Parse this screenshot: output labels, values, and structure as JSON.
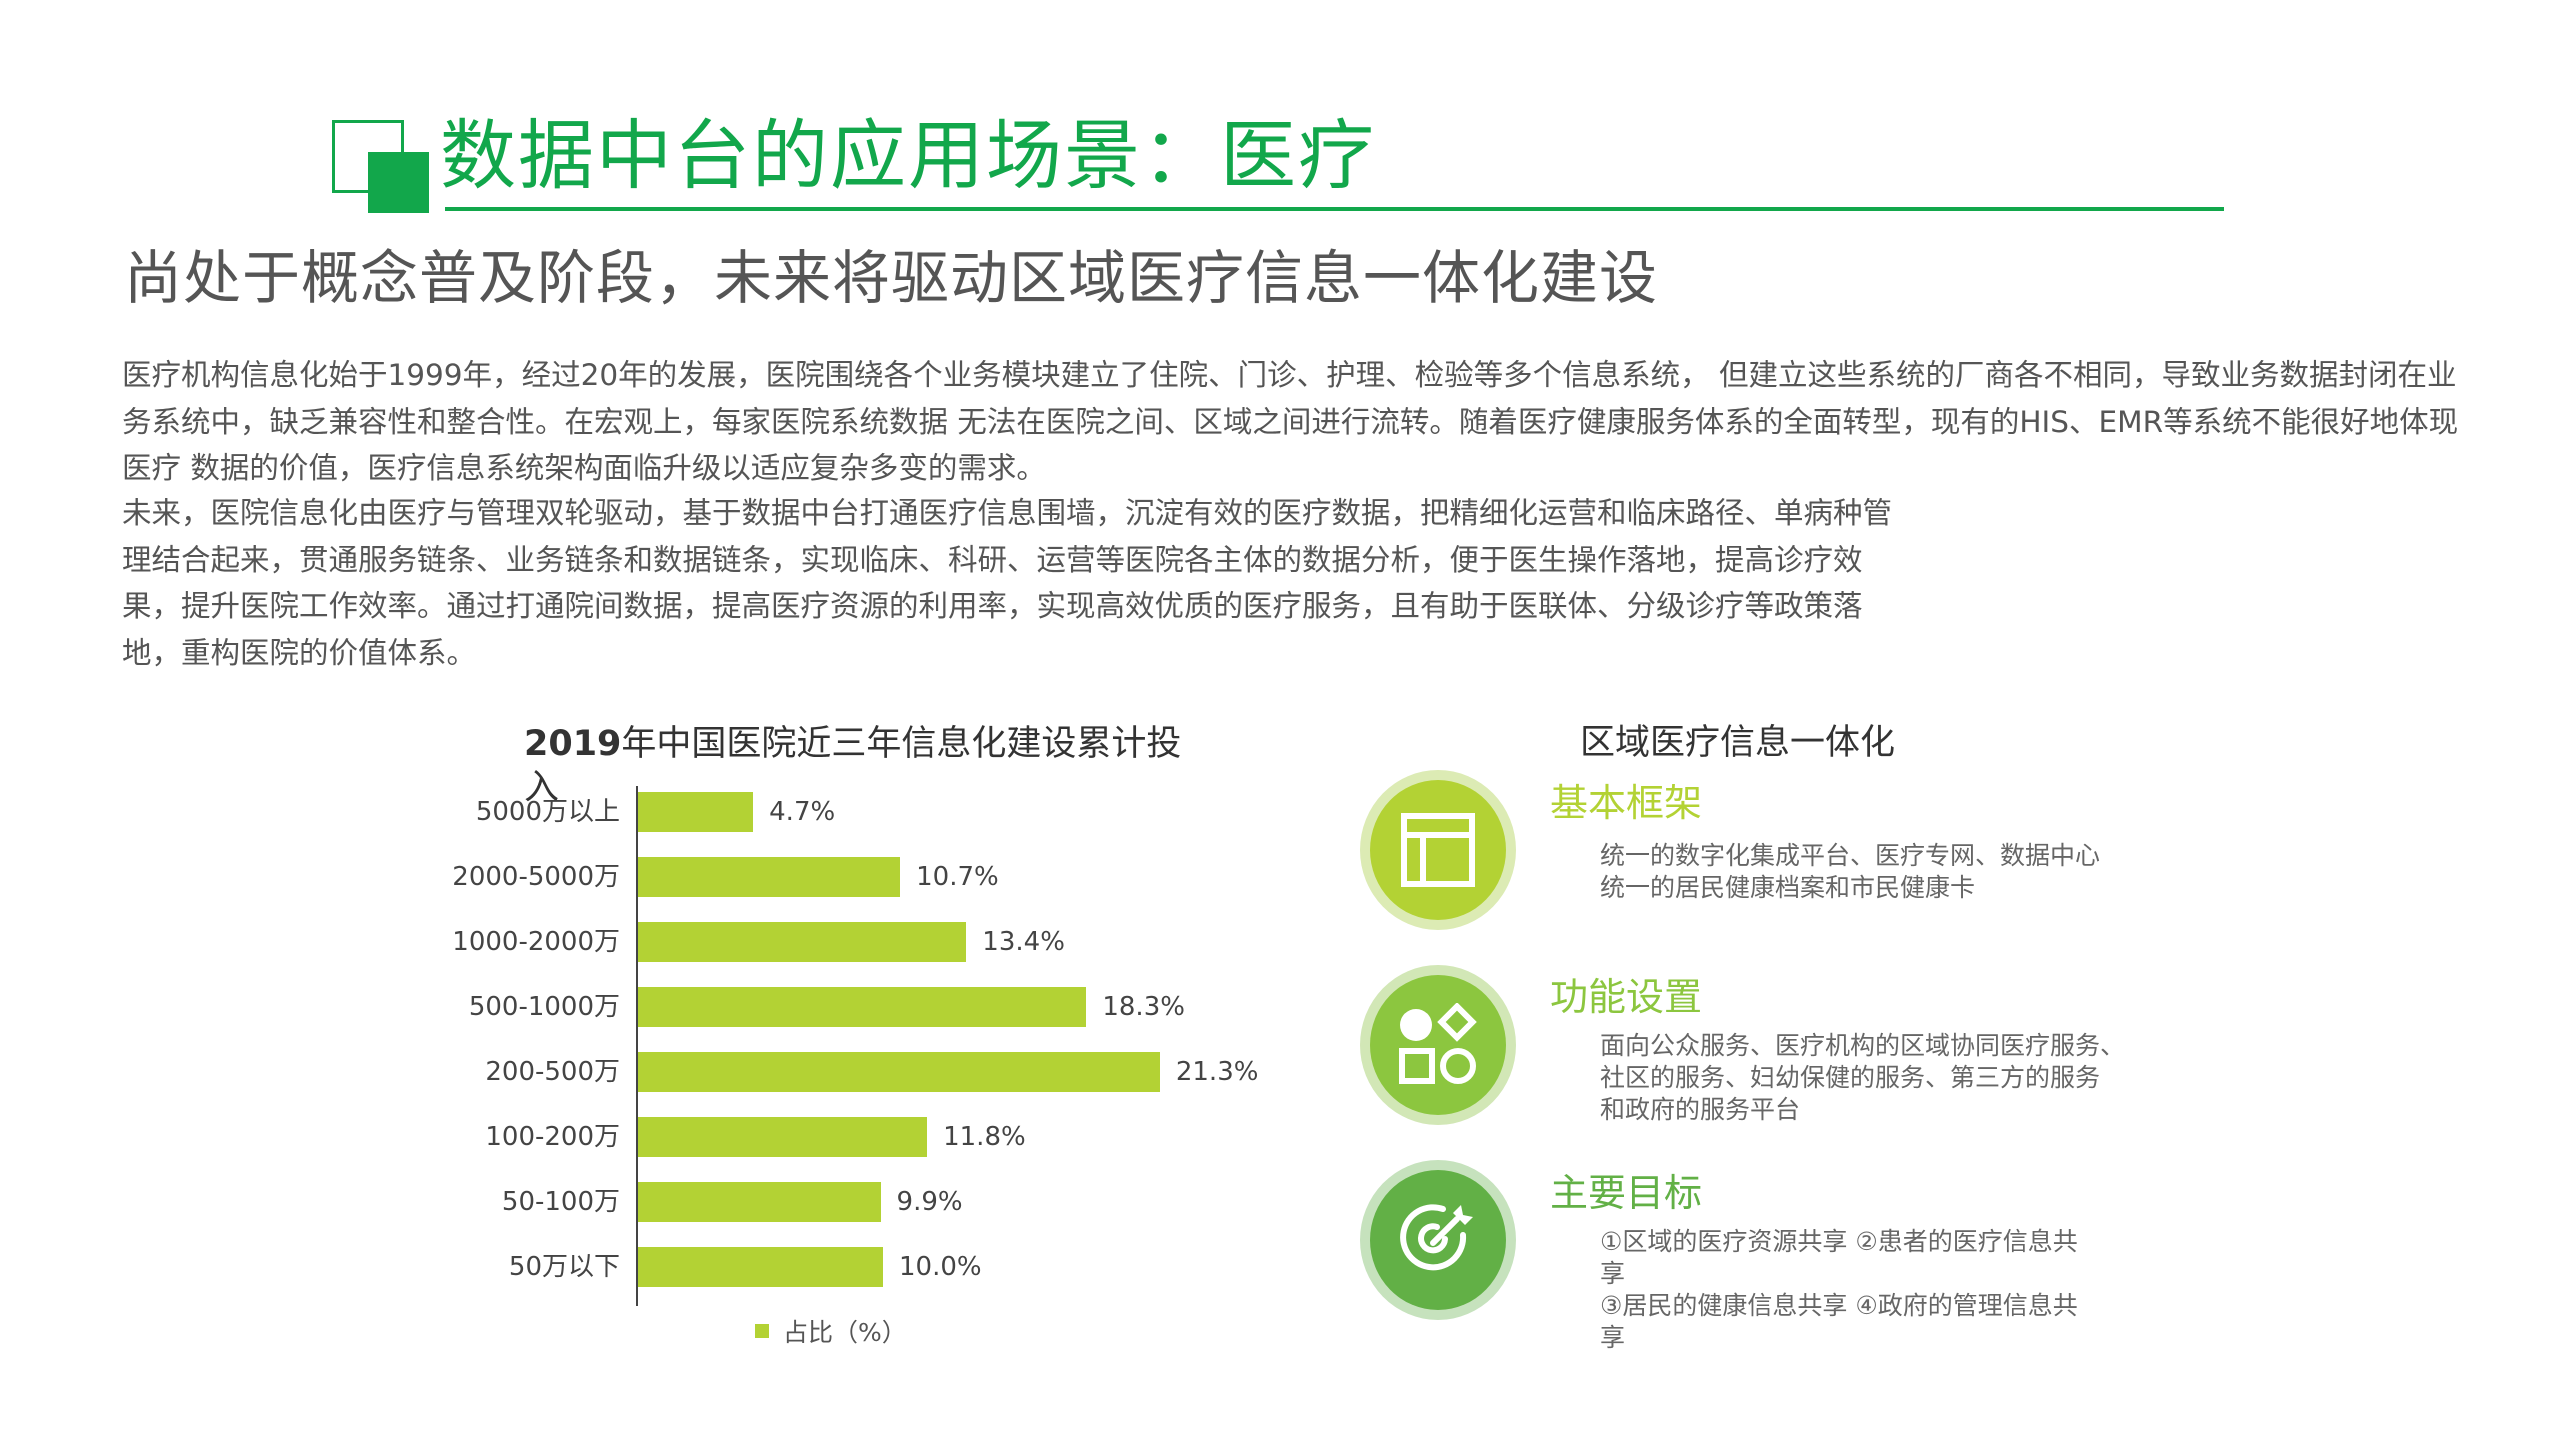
{
  "header": {
    "title": "数据中台的应用场景：医疗",
    "subtitle": "尚处于概念普及阶段，未来将驱动区域医疗信息一体化建设"
  },
  "body": {
    "paragraph1": "医疗机构信息化始于1999年，经过20年的发展，医院围绕各个业务模块建立了住院、门诊、护理、检验等多个信息系统， 但建立这些系统的厂商各不相同，导致业务数据封闭在业务系统中，缺乏兼容性和整合性。在宏观上，每家医院系统数据 无法在医院之间、区域之间进行流转。随着医疗健康服务体系的全面转型，现有的HIS、EMR等系统不能很好地体现医疗 数据的价值，医疗信息系统架构面临升级以适应复杂多变的需求。",
    "paragraph2": "未来，医院信息化由医疗与管理双轮驱动，基于数据中台打通医疗信息围墙，沉淀有效的医疗数据，把精细化运营和临床路径、单病种管理结合起来，贯通服务链条、业务链条和数据链条，实现临床、科研、运营等医院各主体的数据分析，便于医生操作落地，提高诊疗效果，提升医院工作效率。通过打通院间数据，提高医疗资源的利用率，实现高效优质的医疗服务，且有助于医联体、分级诊疗等政策落地，重构医院的价值体系。"
  },
  "chart": {
    "title_bold": "2019",
    "title_rest": "年中国医院近三年信息化建设累计投入",
    "legend": "占比（%）",
    "bar_color": "#b3d234"
  },
  "chart_data": {
    "type": "bar",
    "orientation": "horizontal",
    "title": "2019年中国医院近三年信息化建设累计投入",
    "categories": [
      "5000万以上",
      "2000-5000万",
      "1000-2000万",
      "500-1000万",
      "200-500万",
      "100-200万",
      "50-100万",
      "50万以下"
    ],
    "series": [
      {
        "name": "占比（%）",
        "values": [
          4.7,
          10.7,
          13.4,
          18.3,
          21.3,
          11.8,
          9.9,
          10.0
        ]
      }
    ],
    "labels": [
      "4.7%",
      "10.7%",
      "13.4%",
      "18.3%",
      "21.3%",
      "11.8%",
      "9.9%",
      "10.0%"
    ],
    "xlabel": "",
    "ylabel": "",
    "grid": false,
    "legend_position": "bottom"
  },
  "panel": {
    "title": "区域医疗信息一体化",
    "items": [
      {
        "heading": "基本框架",
        "icon": "layout-icon",
        "color": "#b3d234",
        "halo": "#dcebb4",
        "lines": [
          "统一的数字化集成平台、医疗专网、数据中心",
          "统一的居民健康档案和市民健康卡"
        ]
      },
      {
        "heading": "功能设置",
        "icon": "shapes-icon",
        "color": "#8cc63f",
        "halo": "#d2e7b6",
        "lines": [
          "面向公众服务、医疗机构的区域协同医疗服务、",
          "社区的服务、妇幼保健的服务、第三方的服务",
          "和政府的服务平台"
        ]
      },
      {
        "heading": "主要目标",
        "icon": "target-icon",
        "color": "#62b046",
        "halo": "#c6e2bd",
        "lines": [
          "①区域的医疗资源共享 ②患者的医疗信息共",
          "享",
          "③居民的健康信息共享 ④政府的管理信息共",
          "享"
        ]
      }
    ]
  }
}
